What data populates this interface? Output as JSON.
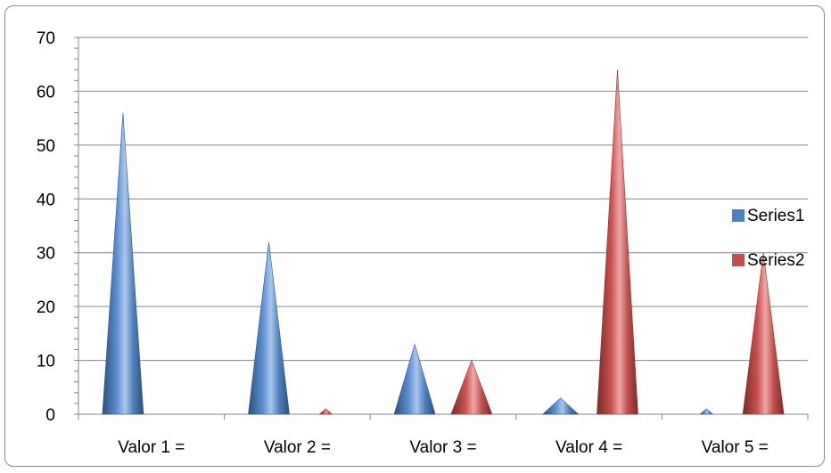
{
  "chart_data": {
    "type": "bar",
    "bar_shape": "cone",
    "categories": [
      "Valor 1 =",
      "Valor 2 =",
      "Valor 3 =",
      "Valor 4 =",
      "Valor 5 ="
    ],
    "series": [
      {
        "name": "Series1",
        "values": [
          56,
          32,
          13,
          3,
          1
        ],
        "color": "#4f81bd"
      },
      {
        "name": "Series2",
        "values": [
          0,
          1,
          10,
          64,
          30
        ],
        "color": "#c0504d"
      }
    ],
    "title": "",
    "xlabel": "",
    "ylabel": "",
    "ylim": [
      0,
      70
    ],
    "yticks": [
      0,
      10,
      20,
      30,
      40,
      50,
      60,
      70
    ],
    "grid": true,
    "legend_position": "right"
  }
}
